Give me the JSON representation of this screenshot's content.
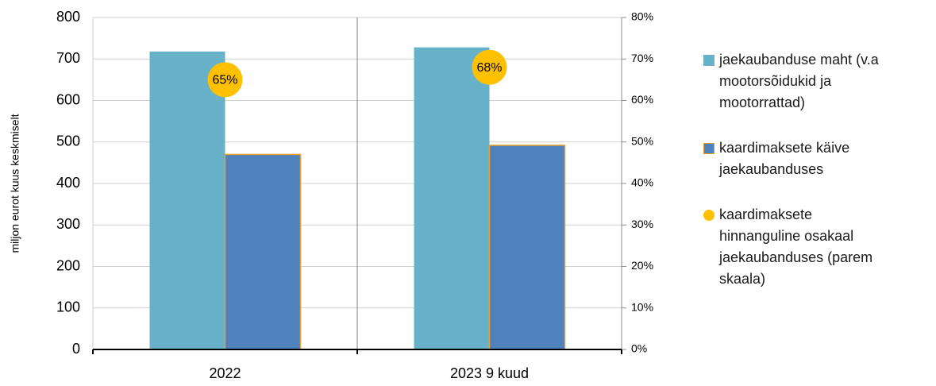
{
  "chart_data": {
    "type": "bar",
    "ylabel": "miljon eurot kuus keskmiselt",
    "categories": [
      "2022",
      "2023 9 kuud"
    ],
    "series": [
      {
        "name": "jaekaubanduse maht (v.a mootorsõidukid ja mootorrattad)",
        "color": "#67b2c8",
        "values": [
          718,
          728
        ]
      },
      {
        "name": "kaardimaksete käive jaekaubanduses",
        "color": "#4f81bd",
        "edgecolor": "#e8a030",
        "values": [
          470,
          492
        ]
      },
      {
        "name": "kaardimaksete hinnanguline osakaal jaekaubanduses (parem skaala)",
        "color": "#ffc000",
        "axis": "y2",
        "values": [
          65,
          68
        ],
        "value_labels": [
          "65%",
          "68%"
        ]
      }
    ],
    "ylim": [
      0,
      800
    ],
    "yticks": [
      0,
      100,
      200,
      300,
      400,
      500,
      600,
      700,
      800
    ],
    "y2lim": [
      0,
      80
    ],
    "y2ticks": [
      {
        "value": 0,
        "label": "0%"
      },
      {
        "value": 10,
        "label": "10%"
      },
      {
        "value": 20,
        "label": "20%"
      },
      {
        "value": 30,
        "label": "30%"
      },
      {
        "value": 40,
        "label": "40%"
      },
      {
        "value": 50,
        "label": "50%"
      },
      {
        "value": 60,
        "label": "60%"
      },
      {
        "value": 70,
        "label": "70%"
      },
      {
        "value": 80,
        "label": "80%"
      }
    ],
    "grid": true,
    "legend": "right"
  }
}
